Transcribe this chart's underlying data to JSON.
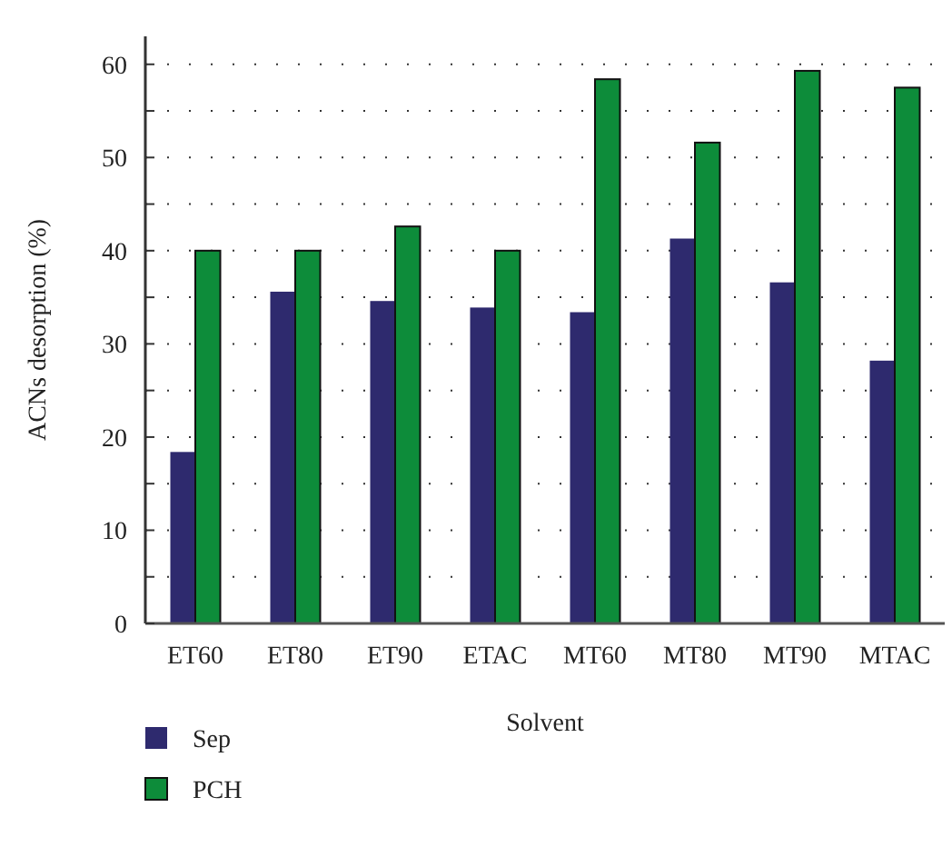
{
  "chart_data": {
    "type": "bar",
    "xlabel": "Solvent",
    "ylabel": "ACNs desorption (%)",
    "categories": [
      "ET60",
      "ET80",
      "ET90",
      "ETAC",
      "MT60",
      "MT80",
      "MT90",
      "MTAC"
    ],
    "series": [
      {
        "name": "Sep",
        "color": "#2e2a6e",
        "values": [
          18.4,
          35.6,
          34.6,
          33.9,
          33.4,
          41.3,
          36.6,
          28.2
        ]
      },
      {
        "name": "PCH",
        "color": "#0d8c3a",
        "values": [
          40,
          40,
          42.6,
          40,
          58.4,
          51.6,
          59.3,
          57.5
        ]
      }
    ],
    "ylim": [
      0,
      63
    ],
    "yticks": [
      0,
      {
        "value": 5,
        "label": null
      },
      10,
      {
        "value": 15,
        "label": null
      },
      20,
      {
        "value": 25,
        "label": null
      },
      30,
      {
        "value": 35,
        "label": null
      },
      40,
      {
        "value": 45,
        "label": null
      },
      50,
      {
        "value": 55,
        "label": null
      },
      60
    ],
    "grid": "y",
    "legend": "bottom left"
  }
}
